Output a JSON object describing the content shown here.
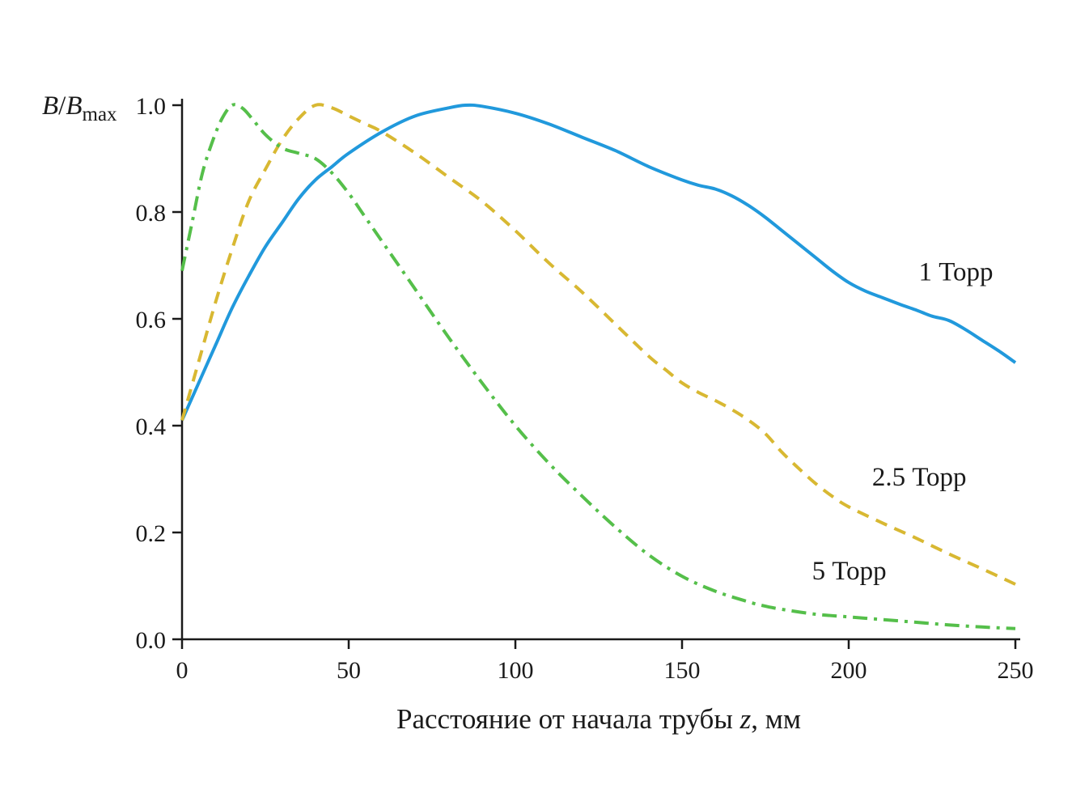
{
  "chart_data": {
    "type": "line",
    "title": "",
    "xlabel_parts": [
      {
        "t": "Расстояние от начала трубы "
      },
      {
        "t": "z",
        "i": true
      },
      {
        "t": ", мм"
      }
    ],
    "ylabel_parts": [
      {
        "t": "B",
        "i": true
      },
      {
        "t": "/"
      },
      {
        "t": "B",
        "i": true
      },
      {
        "t": "max",
        "sub": true
      }
    ],
    "xlim": [
      0,
      250
    ],
    "ylim": [
      0,
      1.0
    ],
    "x_ticks": [
      {
        "v": 0,
        "label": "0"
      },
      {
        "v": 50,
        "label": "50"
      },
      {
        "v": 100,
        "label": "100"
      },
      {
        "v": 150,
        "label": "150"
      },
      {
        "v": 200,
        "label": "200"
      },
      {
        "v": 250,
        "label": "250"
      }
    ],
    "y_ticks": [
      {
        "v": 0.0,
        "label": "0.0"
      },
      {
        "v": 0.2,
        "label": "0.2"
      },
      {
        "v": 0.4,
        "label": "0.4"
      },
      {
        "v": 0.6,
        "label": "0.6"
      },
      {
        "v": 0.8,
        "label": "0.8"
      },
      {
        "v": 1.0,
        "label": "1.0"
      }
    ],
    "grid": false,
    "legend_position": "inline-annotations",
    "axis_color": "#1a1a1a",
    "series": [
      {
        "name": "1 Торр",
        "color": "#2199dc",
        "dash": "",
        "width": 4,
        "points": [
          [
            0,
            0.41
          ],
          [
            5,
            0.48
          ],
          [
            10,
            0.55
          ],
          [
            15,
            0.62
          ],
          [
            20,
            0.68
          ],
          [
            25,
            0.735
          ],
          [
            30,
            0.78
          ],
          [
            35,
            0.825
          ],
          [
            40,
            0.86
          ],
          [
            45,
            0.885
          ],
          [
            50,
            0.91
          ],
          [
            60,
            0.95
          ],
          [
            70,
            0.98
          ],
          [
            80,
            0.995
          ],
          [
            85,
            1.0
          ],
          [
            90,
            0.998
          ],
          [
            100,
            0.985
          ],
          [
            110,
            0.965
          ],
          [
            120,
            0.94
          ],
          [
            130,
            0.915
          ],
          [
            140,
            0.885
          ],
          [
            150,
            0.86
          ],
          [
            155,
            0.85
          ],
          [
            160,
            0.843
          ],
          [
            165,
            0.83
          ],
          [
            170,
            0.812
          ],
          [
            175,
            0.79
          ],
          [
            180,
            0.765
          ],
          [
            185,
            0.74
          ],
          [
            190,
            0.715
          ],
          [
            195,
            0.69
          ],
          [
            200,
            0.668
          ],
          [
            205,
            0.652
          ],
          [
            210,
            0.64
          ],
          [
            215,
            0.628
          ],
          [
            220,
            0.617
          ],
          [
            225,
            0.605
          ],
          [
            230,
            0.597
          ],
          [
            235,
            0.58
          ],
          [
            240,
            0.56
          ],
          [
            245,
            0.54
          ],
          [
            250,
            0.518
          ]
        ]
      },
      {
        "name": "2.5 Торр",
        "color": "#d8b832",
        "dash": "15 10",
        "width": 4,
        "points": [
          [
            0,
            0.41
          ],
          [
            5,
            0.52
          ],
          [
            10,
            0.63
          ],
          [
            15,
            0.73
          ],
          [
            20,
            0.82
          ],
          [
            25,
            0.88
          ],
          [
            30,
            0.935
          ],
          [
            35,
            0.975
          ],
          [
            40,
            1.0
          ],
          [
            45,
            0.995
          ],
          [
            50,
            0.98
          ],
          [
            55,
            0.965
          ],
          [
            60,
            0.95
          ],
          [
            70,
            0.91
          ],
          [
            80,
            0.865
          ],
          [
            90,
            0.82
          ],
          [
            100,
            0.765
          ],
          [
            110,
            0.705
          ],
          [
            120,
            0.65
          ],
          [
            130,
            0.59
          ],
          [
            140,
            0.53
          ],
          [
            145,
            0.505
          ],
          [
            150,
            0.48
          ],
          [
            155,
            0.462
          ],
          [
            160,
            0.447
          ],
          [
            165,
            0.43
          ],
          [
            170,
            0.41
          ],
          [
            175,
            0.385
          ],
          [
            180,
            0.35
          ],
          [
            185,
            0.32
          ],
          [
            190,
            0.292
          ],
          [
            195,
            0.268
          ],
          [
            200,
            0.248
          ],
          [
            210,
            0.218
          ],
          [
            220,
            0.19
          ],
          [
            230,
            0.16
          ],
          [
            240,
            0.132
          ],
          [
            250,
            0.103
          ]
        ]
      },
      {
        "name": "5 Торр",
        "color": "#55bf4a",
        "dash": "18 8 4 8",
        "width": 4,
        "points": [
          [
            0,
            0.69
          ],
          [
            3,
            0.78
          ],
          [
            6,
            0.87
          ],
          [
            9,
            0.93
          ],
          [
            12,
            0.975
          ],
          [
            15,
            1.0
          ],
          [
            18,
            0.995
          ],
          [
            21,
            0.975
          ],
          [
            25,
            0.945
          ],
          [
            30,
            0.92
          ],
          [
            35,
            0.91
          ],
          [
            40,
            0.9
          ],
          [
            45,
            0.873
          ],
          [
            50,
            0.835
          ],
          [
            55,
            0.79
          ],
          [
            60,
            0.745
          ],
          [
            70,
            0.655
          ],
          [
            80,
            0.565
          ],
          [
            90,
            0.48
          ],
          [
            100,
            0.4
          ],
          [
            110,
            0.33
          ],
          [
            120,
            0.268
          ],
          [
            130,
            0.21
          ],
          [
            140,
            0.158
          ],
          [
            150,
            0.118
          ],
          [
            160,
            0.09
          ],
          [
            170,
            0.07
          ],
          [
            175,
            0.062
          ],
          [
            180,
            0.056
          ],
          [
            190,
            0.047
          ],
          [
            200,
            0.042
          ],
          [
            210,
            0.037
          ],
          [
            220,
            0.032
          ],
          [
            230,
            0.027
          ],
          [
            240,
            0.023
          ],
          [
            250,
            0.02
          ]
        ]
      }
    ],
    "annotations": [
      {
        "text": "1 Торр",
        "x": 221,
        "y": 0.672,
        "series": "1 Торр"
      },
      {
        "text": "2.5 Торр",
        "x": 207,
        "y": 0.288,
        "series": "2.5 Торр"
      },
      {
        "text": "5 Торр",
        "x": 189,
        "y": 0.112,
        "series": "5 Торр"
      }
    ]
  }
}
